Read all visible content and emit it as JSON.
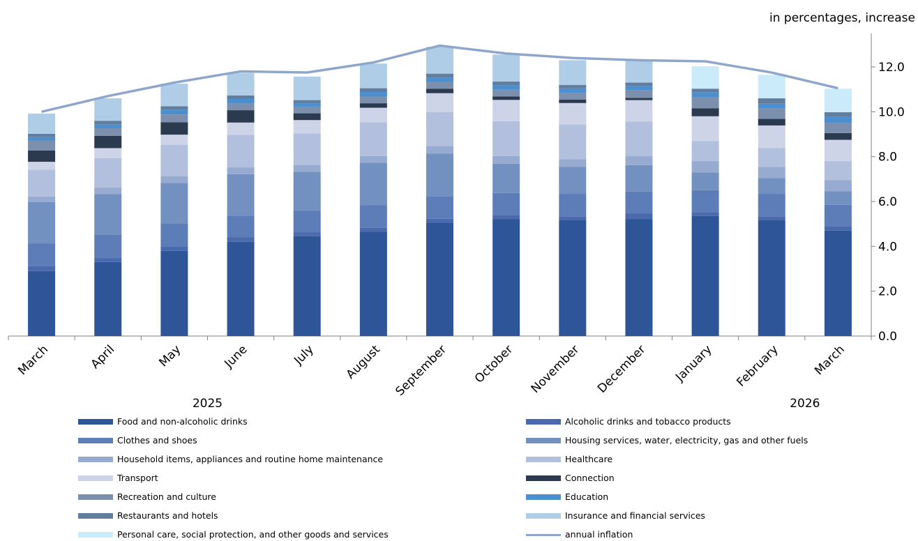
{
  "chart_data": {
    "type": "bar",
    "unit_label": "in percentages, increase",
    "categories": [
      "March",
      "April",
      "May",
      "June",
      "July",
      "August",
      "September",
      "October",
      "November",
      "December",
      "January",
      "February",
      "March"
    ],
    "year_labels": [
      {
        "text": "2025",
        "category_index": 2.5
      },
      {
        "text": "2026",
        "category_index": 11.5
      }
    ],
    "ylim": [
      0,
      13.5
    ],
    "yticks": [
      "0.0",
      "2.0",
      "4.0",
      "6.0",
      "8.0",
      "10.0",
      "12.0"
    ],
    "ytick_values": [
      0,
      2,
      4,
      6,
      8,
      10,
      12
    ],
    "y_axis_position": "right",
    "grid": false,
    "legend_position": "bottom",
    "series": [
      {
        "name": "Food and non-alcoholic drinks",
        "color": "#2E5597",
        "values": [
          2.9,
          3.3,
          3.8,
          4.2,
          4.45,
          4.65,
          5.05,
          5.22,
          5.16,
          5.22,
          5.35,
          5.16,
          4.7
        ]
      },
      {
        "name": "Alcoholic drinks and tobacco products",
        "color": "#4A6AAD",
        "values": [
          0.22,
          0.18,
          0.18,
          0.2,
          0.18,
          0.18,
          0.18,
          0.18,
          0.18,
          0.25,
          0.18,
          0.18,
          0.2
        ]
      },
      {
        "name": "Clothes and shoes",
        "color": "#5D7DB8",
        "values": [
          1.0,
          1.05,
          1.05,
          0.97,
          0.95,
          1.0,
          1.0,
          0.98,
          1.0,
          0.97,
          0.97,
          1.0,
          0.95
        ]
      },
      {
        "name": "Housing services, water, electricity, gas and other fuels",
        "color": "#7290C0",
        "values": [
          1.85,
          1.8,
          1.8,
          1.85,
          1.75,
          1.9,
          1.9,
          1.3,
          1.2,
          1.18,
          0.8,
          0.7,
          0.6
        ]
      },
      {
        "name": "Household items, appliances and routine home maintenance",
        "color": "#97ABD0",
        "values": [
          0.25,
          0.3,
          0.3,
          0.3,
          0.3,
          0.3,
          0.35,
          0.35,
          0.35,
          0.4,
          0.5,
          0.5,
          0.5
        ]
      },
      {
        "name": "Healthcare",
        "color": "#B3C0DD",
        "values": [
          1.2,
          1.3,
          1.4,
          1.45,
          1.4,
          1.5,
          1.5,
          1.55,
          1.55,
          1.55,
          0.9,
          0.85,
          0.85
        ]
      },
      {
        "name": "Transport",
        "color": "#CDD4E7",
        "values": [
          0.35,
          0.45,
          0.45,
          0.55,
          0.6,
          0.65,
          0.85,
          0.95,
          0.95,
          0.95,
          1.1,
          1.0,
          0.95
        ]
      },
      {
        "name": "Connection",
        "color": "#2B3A4F",
        "values": [
          0.5,
          0.55,
          0.55,
          0.55,
          0.3,
          0.2,
          0.2,
          0.15,
          0.15,
          0.1,
          0.35,
          0.3,
          0.3
        ]
      },
      {
        "name": "Recreation and culture",
        "color": "#7C90AE",
        "values": [
          0.45,
          0.35,
          0.35,
          0.3,
          0.3,
          0.3,
          0.3,
          0.3,
          0.3,
          0.35,
          0.5,
          0.45,
          0.45
        ]
      },
      {
        "name": "Education",
        "color": "#4C8FD0",
        "values": [
          0.15,
          0.15,
          0.2,
          0.2,
          0.15,
          0.2,
          0.2,
          0.2,
          0.2,
          0.18,
          0.22,
          0.22,
          0.28
        ]
      },
      {
        "name": "Restaurants and hotels",
        "color": "#617E9E",
        "values": [
          0.15,
          0.17,
          0.17,
          0.16,
          0.14,
          0.17,
          0.17,
          0.17,
          0.16,
          0.15,
          0.16,
          0.24,
          0.2
        ]
      },
      {
        "name": "Insurance and financial services",
        "color": "#B0CDE8",
        "values": [
          0.9,
          1.0,
          1.0,
          1.0,
          1.05,
          1.1,
          1.2,
          1.2,
          1.1,
          1.0,
          0.0,
          0.0,
          0.0
        ]
      },
      {
        "name": "Personal care, social protection, and other goods and services",
        "color": "#CCEBFA",
        "values": [
          0.0,
          0.0,
          0.0,
          0.0,
          0.0,
          0.0,
          0.0,
          0.0,
          0.0,
          0.0,
          1.0,
          1.05,
          1.05
        ]
      }
    ],
    "line": {
      "name": "annual inflation",
      "color": "#8FA6CB",
      "values": [
        10.0,
        10.7,
        11.3,
        11.8,
        11.75,
        12.2,
        12.95,
        12.6,
        12.4,
        12.3,
        12.25,
        11.75,
        11.05
      ]
    }
  },
  "legend": [
    {
      "label": "Food and non-alcoholic drinks",
      "color": "#2E5597",
      "kind": "box"
    },
    {
      "label": "Alcoholic drinks and tobacco products",
      "color": "#4A6AAD",
      "kind": "box"
    },
    {
      "label": "Clothes and shoes",
      "color": "#5D7DB8",
      "kind": "box"
    },
    {
      "label": "Housing services, water, electricity, gas and other fuels",
      "color": "#7290C0",
      "kind": "box"
    },
    {
      "label": "Household items, appliances and routine home maintenance",
      "color": "#97ABD0",
      "kind": "box"
    },
    {
      "label": "Healthcare",
      "color": "#B3C0DD",
      "kind": "box"
    },
    {
      "label": "Transport",
      "color": "#CDD4E7",
      "kind": "box"
    },
    {
      "label": "Connection",
      "color": "#2B3A4F",
      "kind": "box"
    },
    {
      "label": "Recreation and culture",
      "color": "#7C90AE",
      "kind": "box"
    },
    {
      "label": "Education",
      "color": "#4C8FD0",
      "kind": "box"
    },
    {
      "label": "Restaurants and hotels",
      "color": "#617E9E",
      "kind": "box"
    },
    {
      "label": "Insurance and financial services",
      "color": "#B0CDE8",
      "kind": "box"
    },
    {
      "label": "Personal care, social protection, and other goods and services",
      "color": "#CCEBFA",
      "kind": "box"
    },
    {
      "label": "annual inflation",
      "color": "#8FA6CB",
      "kind": "line"
    }
  ]
}
